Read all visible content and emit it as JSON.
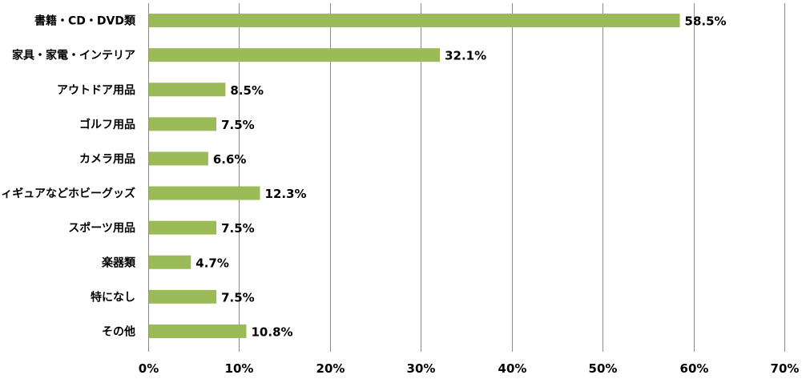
{
  "chart_data": {
    "type": "bar",
    "orientation": "horizontal",
    "categories": [
      "書籍・CD・DVD類",
      "家具・家電・インテリア",
      "アウトドア用品",
      "ゴルフ用品",
      "カメラ用品",
      "フィギュアなどホビーグッズ",
      "スポーツ用品",
      "楽器類",
      "特になし",
      "その他"
    ],
    "values": [
      58.5,
      32.1,
      8.5,
      7.5,
      6.6,
      12.3,
      7.5,
      4.7,
      7.5,
      10.8
    ],
    "value_labels": [
      "58.5%",
      "32.1%",
      "8.5%",
      "7.5%",
      "6.6%",
      "12.3%",
      "7.5%",
      "4.7%",
      "7.5%",
      "10.8%"
    ],
    "xlim": [
      0,
      70
    ],
    "xticks": [
      0,
      10,
      20,
      30,
      40,
      50,
      60,
      70
    ],
    "xtick_labels": [
      "0%",
      "10%",
      "20%",
      "30%",
      "40%",
      "50%",
      "60%",
      "70%"
    ],
    "grid": "vertical",
    "bar_color": "#9bbb59",
    "title": "",
    "xlabel": "",
    "ylabel": ""
  }
}
